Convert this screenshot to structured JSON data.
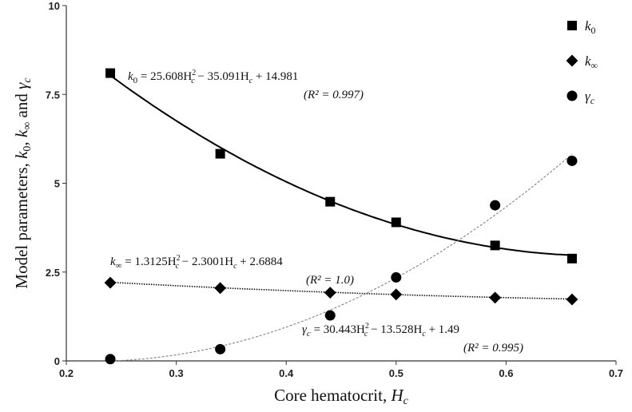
{
  "chart_data": {
    "type": "scatter",
    "xlabel": "Core hematocrit, Hc",
    "ylabel": "Model parameters, k0, k∞ and γc",
    "xlim": [
      0.2,
      0.7
    ],
    "ylim": [
      0,
      10
    ],
    "x_ticks": [
      "0.2",
      "0.3",
      "0.4",
      "0.5",
      "0.6",
      "0.7"
    ],
    "y_ticks": [
      "0",
      "2.5",
      "5",
      "7.5",
      "10"
    ],
    "grid": false,
    "legend_position": "top-right",
    "series": [
      {
        "name": "k0",
        "marker": "square",
        "color": "#000000",
        "x": [
          0.24,
          0.34,
          0.44,
          0.5,
          0.59,
          0.66
        ],
        "y": [
          8.1,
          5.83,
          4.48,
          3.9,
          3.25,
          2.88
        ],
        "fit": {
          "a": 25.608,
          "b": -35.091,
          "c": 14.981,
          "style": "solid"
        },
        "equation": "k0 = 25.608Hc² − 35.091Hc + 14.981",
        "r2": "(R² = 0.997)"
      },
      {
        "name": "k∞",
        "marker": "diamond",
        "color": "#000000",
        "x": [
          0.24,
          0.34,
          0.44,
          0.5,
          0.59,
          0.66
        ],
        "y": [
          2.2,
          2.05,
          1.92,
          1.87,
          1.78,
          1.73
        ],
        "fit": {
          "a": 1.3125,
          "b": -2.3001,
          "c": 2.6884,
          "style": "dotted"
        },
        "equation": "k∞ = 1.3125Hc² − 2.3001Hc + 2.6884",
        "r2": "(R² = 1.0)"
      },
      {
        "name": "γc",
        "marker": "circle",
        "color": "#000000",
        "x": [
          0.24,
          0.34,
          0.44,
          0.5,
          0.59,
          0.66
        ],
        "y": [
          0.05,
          0.33,
          1.28,
          2.35,
          4.38,
          5.63
        ],
        "fit": {
          "a": 30.443,
          "b": -13.528,
          "c": 1.49,
          "style": "dashed"
        },
        "equation": "γc = 30.443Hc² − 13.528Hc + 1.49",
        "r2": "(R² = 0.995)"
      }
    ]
  }
}
